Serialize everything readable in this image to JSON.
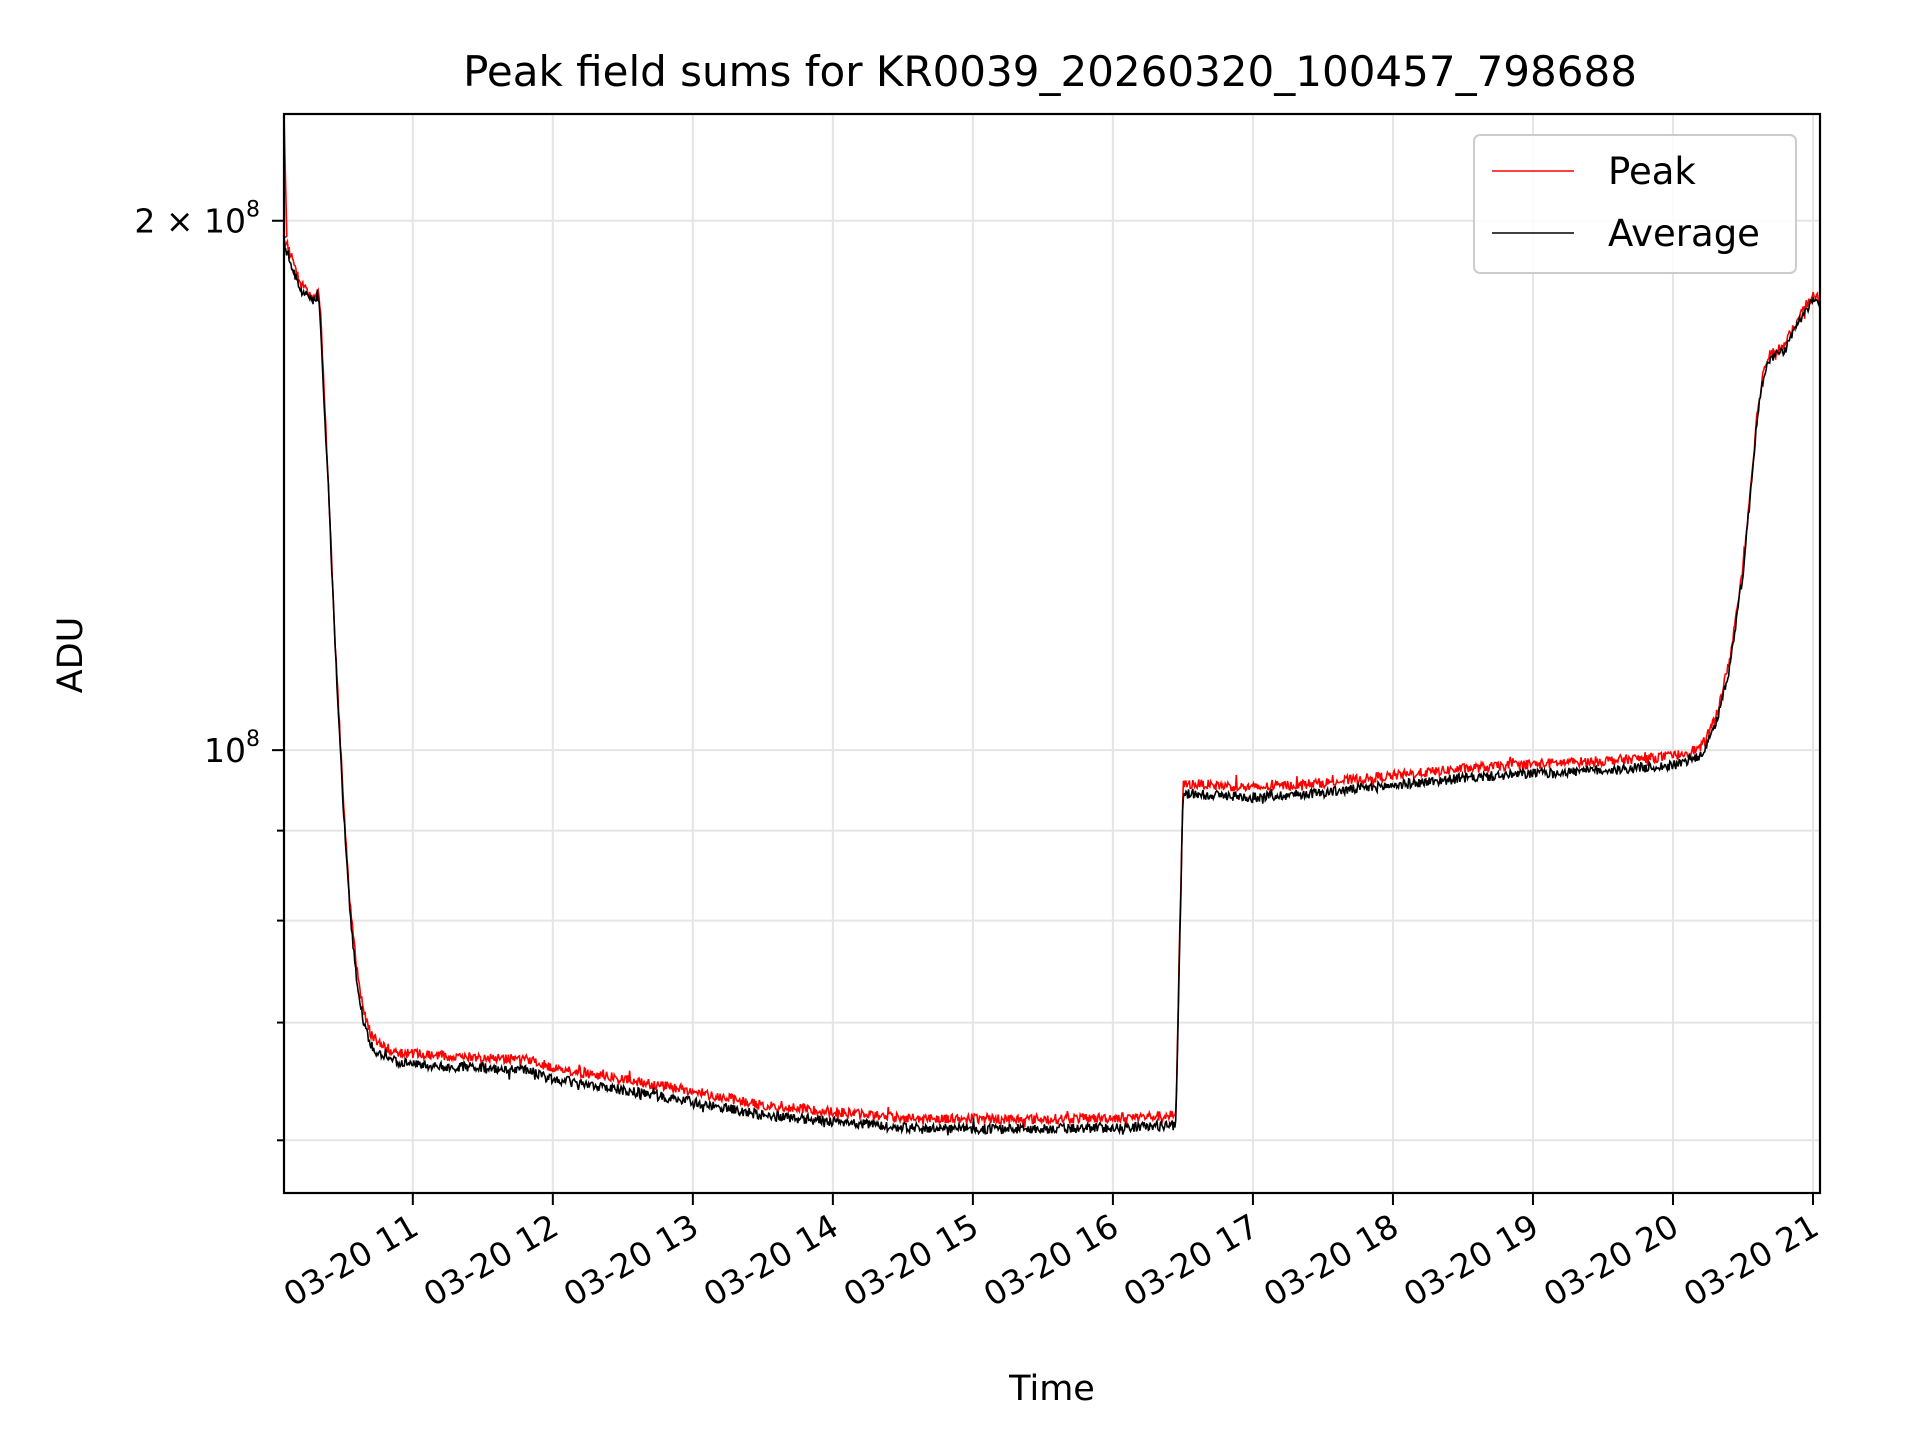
{
  "chart_data": {
    "type": "line",
    "title": "Peak field sums for KR0039_20260320_100457_798688",
    "xlabel": "Time",
    "ylabel": "ADU",
    "y_scale": "log",
    "grid": true,
    "legend_position": "top-right",
    "xlim": [
      10.08,
      21.05
    ],
    "ylim": [
      56000000,
      230000000
    ],
    "x_unit": "hour of 03-20",
    "x_ticks": [
      {
        "value": 11,
        "label": "03-20 11"
      },
      {
        "value": 12,
        "label": "03-20 12"
      },
      {
        "value": 13,
        "label": "03-20 13"
      },
      {
        "value": 14,
        "label": "03-20 14"
      },
      {
        "value": 15,
        "label": "03-20 15"
      },
      {
        "value": 16,
        "label": "03-20 16"
      },
      {
        "value": 17,
        "label": "03-20 17"
      },
      {
        "value": 18,
        "label": "03-20 18"
      },
      {
        "value": 19,
        "label": "03-20 19"
      },
      {
        "value": 20,
        "label": "03-20 20"
      },
      {
        "value": 21,
        "label": "03-20 21"
      }
    ],
    "y_major_ticks": [
      {
        "value": 100000000,
        "base": "10",
        "exp": "8"
      },
      {
        "value": 200000000,
        "base": "2 × 10",
        "exp": "8"
      }
    ],
    "y_minor_ticks": [
      60000000,
      70000000,
      80000000,
      90000000
    ],
    "series": [
      {
        "name": "Peak",
        "color": "#ff0000",
        "noise": 0.0065,
        "spike": {
          "x": [
            10.08,
            10.1
          ],
          "y": [
            230000000,
            196000000
          ]
        },
        "x": [
          10.08,
          10.1,
          10.12,
          10.15,
          10.2,
          10.25,
          10.3,
          10.32,
          10.34,
          10.36,
          10.4,
          10.45,
          10.5,
          10.55,
          10.6,
          10.65,
          10.7,
          10.75,
          10.8,
          10.85,
          10.9,
          11.0,
          11.2,
          11.5,
          11.8,
          12.0,
          12.5,
          13.0,
          13.5,
          14.0,
          14.5,
          15.0,
          15.5,
          16.0,
          16.25,
          16.45,
          16.5,
          16.55,
          16.65,
          17.0,
          17.5,
          18.0,
          18.5,
          19.0,
          19.5,
          20.0,
          20.2,
          20.3,
          20.4,
          20.5,
          20.55,
          20.6,
          20.65,
          20.7,
          20.8,
          20.9,
          20.95,
          21.0,
          21.05
        ],
        "y": [
          196000000,
          194000000,
          192000000,
          189000000,
          184000000,
          182000000,
          181000000,
          183000000,
          178000000,
          164000000,
          140000000,
          113000000,
          95000000,
          82000000,
          75000000,
          71000000,
          69000000,
          68200000,
          67800000,
          67500000,
          67300000,
          67200000,
          67000000,
          66900000,
          66700000,
          66000000,
          65000000,
          64000000,
          62800000,
          62300000,
          61800000,
          61700000,
          61700000,
          61800000,
          61900000,
          62000000,
          95500000,
          95700000,
          95600000,
          95200000,
          95800000,
          96700000,
          97600000,
          98200000,
          98600000,
          99200000,
          100300000,
          104000000,
          112000000,
          127000000,
          140000000,
          155000000,
          165000000,
          168000000,
          170000000,
          176000000,
          179000000,
          181000000,
          181000000
        ]
      },
      {
        "name": "Average",
        "color": "#000000",
        "noise": 0.0065,
        "x": [
          10.08,
          10.1,
          10.12,
          10.15,
          10.2,
          10.25,
          10.3,
          10.32,
          10.34,
          10.36,
          10.4,
          10.45,
          10.5,
          10.55,
          10.6,
          10.65,
          10.7,
          10.75,
          10.8,
          10.85,
          10.9,
          11.0,
          11.2,
          11.5,
          11.8,
          12.0,
          12.5,
          13.0,
          13.5,
          14.0,
          14.5,
          15.0,
          15.5,
          16.0,
          16.25,
          16.45,
          16.5,
          16.55,
          16.65,
          17.0,
          17.5,
          18.0,
          18.5,
          19.0,
          19.5,
          20.0,
          20.2,
          20.3,
          20.4,
          20.5,
          20.55,
          20.6,
          20.65,
          20.7,
          20.8,
          20.9,
          20.95,
          21.0,
          21.05
        ],
        "y": [
          194000000,
          192000000,
          190000000,
          187000000,
          182500000,
          181000000,
          180000000,
          182000000,
          176000000,
          162000000,
          139000000,
          112000000,
          94000000,
          81000000,
          74000000,
          70000000,
          68000000,
          67200000,
          66900000,
          66600000,
          66400000,
          66300000,
          66100000,
          66000000,
          65800000,
          65000000,
          64100000,
          63100000,
          62000000,
          61500000,
          61000000,
          60900000,
          60900000,
          61000000,
          61100000,
          61200000,
          94300000,
          94500000,
          94400000,
          94000000,
          94600000,
          95500000,
          96400000,
          97000000,
          97400000,
          98000000,
          99200000,
          103000000,
          111000000,
          126000000,
          139000000,
          154000000,
          164000000,
          167000000,
          169000000,
          175000000,
          178000000,
          180000000,
          180000000
        ]
      }
    ]
  }
}
